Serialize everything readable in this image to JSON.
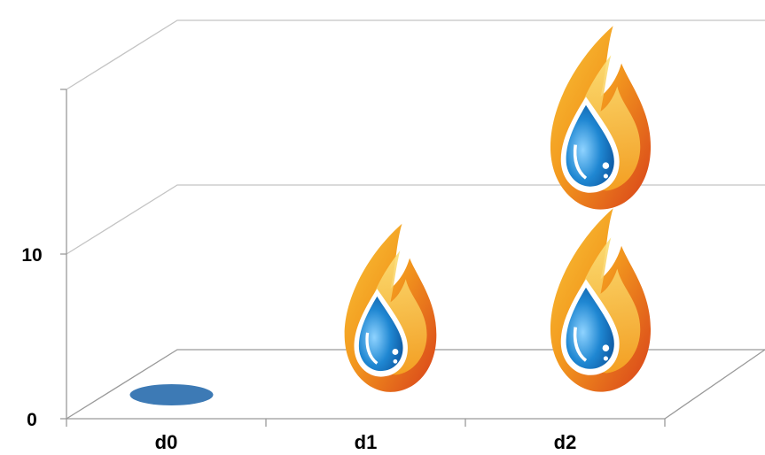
{
  "chart_data": {
    "type": "bar",
    "style": "3d-pictograph",
    "pictograph_icon": "flame-water-drop-icon",
    "categories": [
      "d0",
      "d1",
      "d2"
    ],
    "values": [
      0,
      10,
      20
    ],
    "ylim": [
      0,
      20
    ],
    "yticks": [
      0,
      10
    ],
    "ytick_labels": [
      "0",
      "10"
    ],
    "grid": true,
    "colors": {
      "flame_outer": "#e8531f",
      "flame_mid": "#f39a1e",
      "flame_inner": "#f8c43a",
      "drop": "#1f87d2",
      "drop_dark": "#0a4f98",
      "empty_marker": "#3d7ab5",
      "grid": "#c4c4c4"
    }
  }
}
